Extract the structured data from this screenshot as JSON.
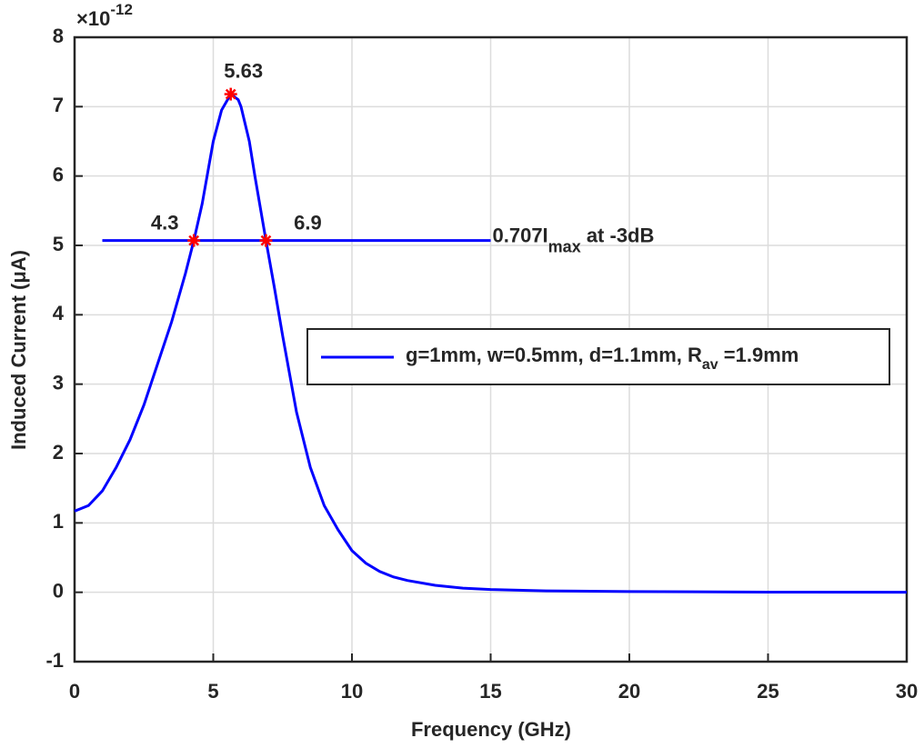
{
  "chart_data": {
    "type": "line",
    "xlabel": "Frequency (GHz)",
    "ylabel": "Induced Current (μA)",
    "y_multiplier": {
      "base": "×10",
      "exponent": "-12"
    },
    "xlim": [
      0,
      30
    ],
    "ylim": [
      -1,
      8
    ],
    "xticks": [
      0,
      5,
      10,
      15,
      20,
      25,
      30
    ],
    "yticks": [
      -1,
      0,
      1,
      2,
      3,
      4,
      5,
      6,
      7,
      8
    ],
    "grid": true,
    "legend_position": "right",
    "legend": {
      "text": "g=1mm, w=0.5mm, d=1.1mm, R",
      "subscript": "av",
      "suffix": " =1.9mm"
    },
    "series": [
      {
        "color": "#0000ff",
        "x": [
          0,
          0.5,
          1,
          1.5,
          2,
          2.5,
          3,
          3.5,
          4,
          4.3,
          4.6,
          5,
          5.3,
          5.63,
          5.9,
          6,
          6.3,
          6.5,
          6.9,
          7.2,
          7.5,
          8,
          8.5,
          9,
          9.5,
          10,
          10.5,
          11,
          11.5,
          12,
          13,
          14,
          15,
          17,
          20,
          25,
          30
        ],
        "values": [
          1.17,
          1.25,
          1.46,
          1.8,
          2.2,
          2.7,
          3.3,
          3.9,
          4.6,
          5.07,
          5.6,
          6.5,
          6.95,
          7.18,
          7.1,
          7.0,
          6.5,
          6.0,
          5.07,
          4.4,
          3.7,
          2.6,
          1.8,
          1.25,
          0.9,
          0.6,
          0.42,
          0.3,
          0.22,
          0.17,
          0.1,
          0.06,
          0.04,
          0.02,
          0.01,
          0.002,
          0
        ]
      },
      {
        "color": "#0000ff",
        "x": [
          1,
          15
        ],
        "values": [
          5.07,
          5.07
        ]
      },
      {
        "color": "#ff0000",
        "marker": "star",
        "x": [
          4.3,
          5.63,
          6.9
        ],
        "values": [
          5.07,
          7.18,
          5.07
        ],
        "x_labels": [
          "4.3",
          "5.63",
          "6.9"
        ]
      }
    ],
    "annotation": {
      "text": "0.707I",
      "subscript": "max",
      "suffix": " at -3dB"
    }
  }
}
